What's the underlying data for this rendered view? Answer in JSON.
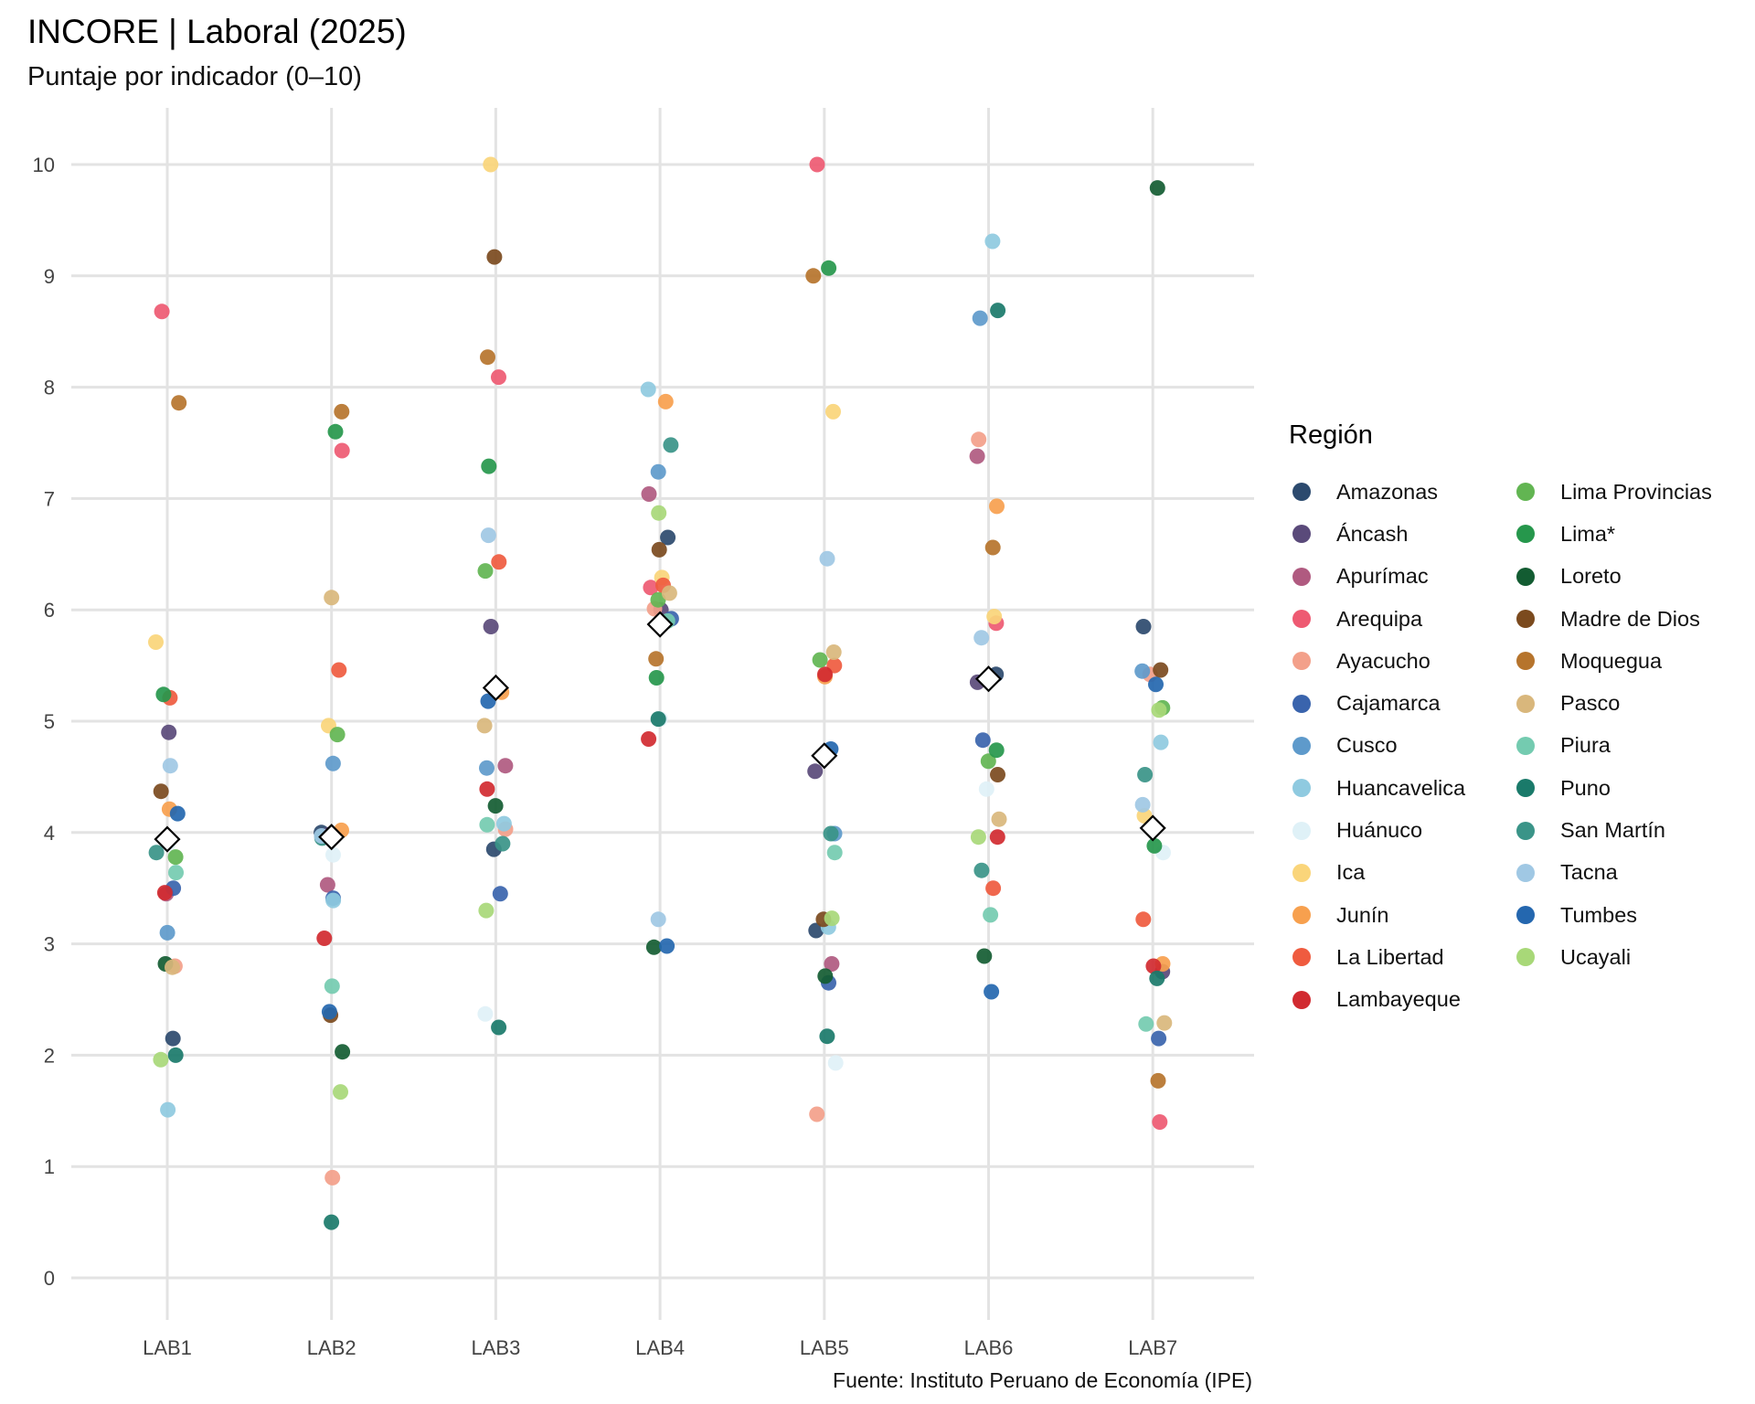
{
  "chart_data": {
    "type": "scatter",
    "title": "INCORE | Laboral (2025)",
    "subtitle": "Puntaje por indicador (0–10)",
    "caption": "Fuente: Instituto Peruano de Economía (IPE)",
    "categories": [
      "LAB1",
      "LAB2",
      "LAB3",
      "LAB4",
      "LAB5",
      "LAB6",
      "LAB7"
    ],
    "y_ticks": [
      "0",
      "1",
      "2",
      "3",
      "4",
      "5",
      "6",
      "7",
      "8",
      "9",
      "10"
    ],
    "ylim": [
      -0.4,
      10.5
    ],
    "grid": true,
    "legend": {
      "title": "Región",
      "placement": "right"
    },
    "series": [
      {
        "name": "Amazonas",
        "color": "#2c4a6e",
        "values": [
          2.15,
          4.0,
          3.85,
          6.65,
          3.12,
          5.42,
          5.85
        ]
      },
      {
        "name": "Áncash",
        "color": "#5a4a7a",
        "values": [
          4.9,
          3.98,
          5.85,
          6.0,
          4.55,
          5.35,
          2.75
        ]
      },
      {
        "name": "Apurímac",
        "color": "#b05a80",
        "values": [
          3.45,
          3.53,
          4.6,
          7.04,
          2.82,
          7.38,
          4.05
        ]
      },
      {
        "name": "Arequipa",
        "color": "#ee5a72",
        "values": [
          8.68,
          7.43,
          8.09,
          6.2,
          10.0,
          5.88,
          1.4
        ]
      },
      {
        "name": "Ayacucho",
        "color": "#f3a08a",
        "values": [
          2.8,
          0.9,
          4.03,
          6.01,
          1.47,
          7.53,
          5.42
        ]
      },
      {
        "name": "Cajamarca",
        "color": "#3a64ad",
        "values": [
          3.5,
          3.41,
          3.45,
          5.92,
          2.65,
          4.83,
          2.15
        ]
      },
      {
        "name": "Cusco",
        "color": "#5e9acb",
        "values": [
          3.1,
          4.62,
          4.58,
          7.24,
          3.99,
          8.62,
          5.45
        ]
      },
      {
        "name": "Huancavelica",
        "color": "#8fcae0",
        "values": [
          1.51,
          3.39,
          4.08,
          7.98,
          3.15,
          9.31,
          4.81
        ]
      },
      {
        "name": "Huánuco",
        "color": "#dff1f7",
        "values": [
          3.9,
          3.8,
          2.37,
          5.02,
          1.93,
          4.39,
          3.82
        ]
      },
      {
        "name": "Ica",
        "color": "#fad57a",
        "values": [
          5.71,
          4.96,
          10.0,
          6.29,
          7.78,
          5.94,
          4.15
        ]
      },
      {
        "name": "Junín",
        "color": "#f7a04e",
        "values": [
          4.21,
          4.02,
          5.26,
          7.87,
          5.4,
          6.93,
          2.82
        ]
      },
      {
        "name": "La Libertad",
        "color": "#ef5b3f",
        "values": [
          5.21,
          5.46,
          6.43,
          6.22,
          5.5,
          3.5,
          3.22
        ]
      },
      {
        "name": "Lambayeque",
        "color": "#d12a30",
        "values": [
          3.46,
          3.05,
          4.39,
          4.84,
          5.42,
          3.96,
          2.8
        ]
      },
      {
        "name": "Lima Provincias",
        "color": "#62b552",
        "values": [
          3.78,
          4.88,
          6.35,
          6.09,
          5.55,
          4.64,
          5.12
        ]
      },
      {
        "name": "Lima*",
        "color": "#26974c",
        "values": [
          5.24,
          7.6,
          7.29,
          5.39,
          9.07,
          4.74,
          3.88
        ]
      },
      {
        "name": "Loreto",
        "color": "#135c32",
        "values": [
          2.82,
          2.03,
          4.24,
          2.97,
          2.71,
          2.89,
          9.79
        ]
      },
      {
        "name": "Madre de Dios",
        "color": "#7b4a1e",
        "values": [
          4.37,
          2.36,
          9.17,
          6.54,
          3.22,
          4.52,
          5.46
        ]
      },
      {
        "name": "Moquegua",
        "color": "#b6742c",
        "values": [
          7.86,
          7.78,
          8.27,
          5.56,
          9.0,
          6.56,
          1.77
        ]
      },
      {
        "name": "Pasco",
        "color": "#d9b77c",
        "values": [
          2.79,
          6.11,
          4.96,
          6.15,
          5.62,
          4.12,
          2.29
        ]
      },
      {
        "name": "Piura",
        "color": "#74cbb0",
        "values": [
          3.64,
          2.62,
          4.07,
          5.9,
          3.82,
          3.26,
          2.28
        ]
      },
      {
        "name": "Puno",
        "color": "#1a7a6a",
        "values": [
          2.0,
          0.5,
          2.25,
          5.02,
          2.17,
          8.69,
          2.69
        ]
      },
      {
        "name": "San Martín",
        "color": "#3a9488",
        "values": [
          3.82,
          3.95,
          3.9,
          7.48,
          3.99,
          3.66,
          4.52
        ]
      },
      {
        "name": "Tacna",
        "color": "#a0c8e4",
        "values": [
          4.6,
          3.97,
          6.67,
          3.22,
          6.46,
          5.75,
          4.25
        ]
      },
      {
        "name": "Tumbes",
        "color": "#2467af",
        "values": [
          4.17,
          2.39,
          5.18,
          2.98,
          4.75,
          2.57,
          5.33
        ]
      },
      {
        "name": "Ucayali",
        "color": "#a8d878",
        "values": [
          1.96,
          1.67,
          3.3,
          6.87,
          3.23,
          3.96,
          5.1
        ]
      }
    ],
    "means": [
      3.94,
      3.96,
      5.3,
      5.87,
      4.69,
      5.38,
      4.04
    ]
  }
}
